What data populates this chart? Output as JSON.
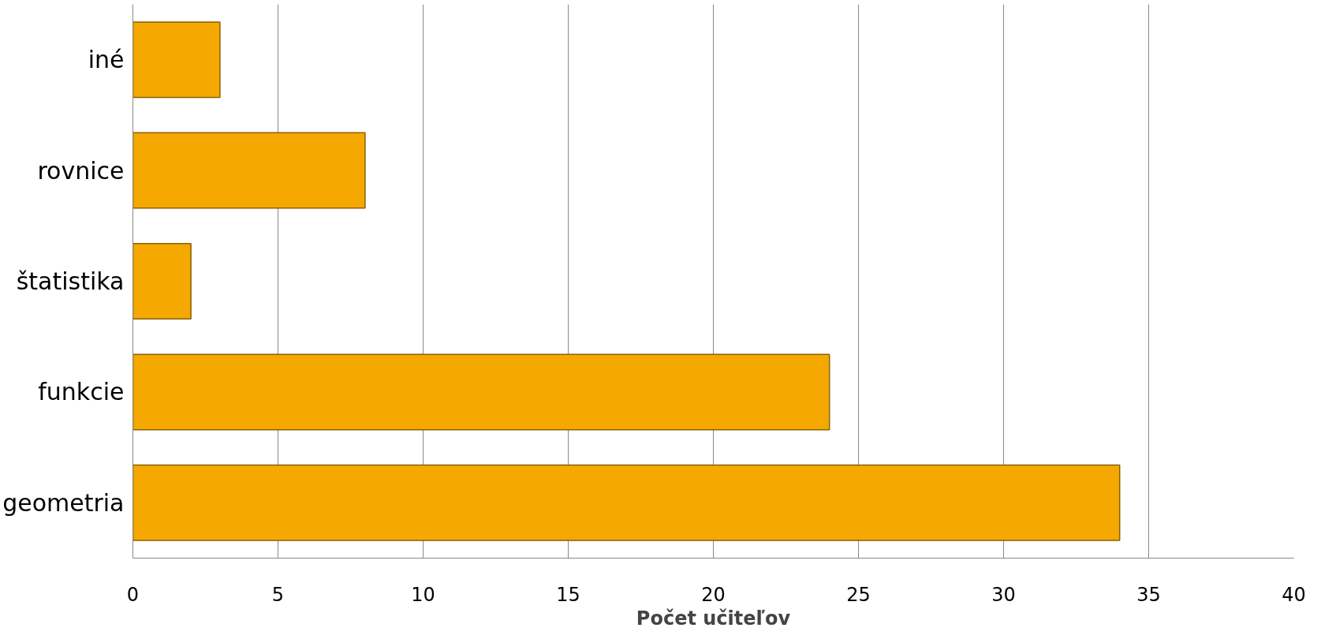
{
  "chart_data": {
    "type": "bar",
    "orientation": "horizontal",
    "xlabel": "Počet učiteľov",
    "categories": [
      "iné",
      "rovnice",
      "štatistika",
      "funkcie",
      "geometria"
    ],
    "values": [
      3,
      8,
      2,
      24,
      34
    ],
    "color": "#f5a900",
    "xlim": [
      0,
      40
    ],
    "xticks": [
      0,
      5,
      10,
      15,
      20,
      25,
      30,
      35,
      40
    ],
    "grid": "x"
  }
}
